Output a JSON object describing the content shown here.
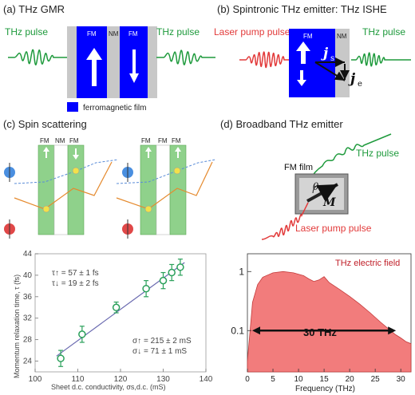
{
  "panels": {
    "a": {
      "caption": "(a) THz GMR",
      "left_pulse": "THz pulse",
      "right_pulse": "THz pulse",
      "fm1": "FM",
      "nm": "NM",
      "fm2": "FM",
      "legend": "ferromagnetic film"
    },
    "b": {
      "caption": "(b) Spintronic THz emitter: THz ISHE",
      "laser": "Laser pump pulse",
      "fm": "FM",
      "nm": "NM",
      "thz": "THz pulse",
      "js": "j",
      "js_sub": "s",
      "je": "j",
      "je_sub": "e"
    },
    "c": {
      "caption": "(c) Spin scattering",
      "left_labels": [
        "FM",
        "NM",
        "FM"
      ],
      "right_labels": [
        "FM",
        "FM",
        "FM"
      ]
    },
    "d": {
      "caption": "(d) Broadband THz emitter",
      "thz": "THz pulse",
      "film": "FM film",
      "theta": "θ",
      "m": "M",
      "laser": "Laser pump pulse"
    }
  },
  "chart_data": [
    {
      "type": "scatter",
      "ylabel": "Momentum relaxation time, τ (fs)",
      "xlabel": "Sheet d.c. conductivity, σs,d.c. (mS)",
      "xlim": [
        100,
        140
      ],
      "ylim": [
        22,
        44
      ],
      "xticks": [
        "100",
        "110",
        "120",
        "130",
        "140"
      ],
      "yticks": [
        "24",
        "28",
        "32",
        "36",
        "40",
        "44"
      ],
      "x": [
        106,
        111,
        119,
        126,
        130,
        132,
        134
      ],
      "y": [
        24.5,
        29,
        34,
        37.5,
        39,
        40.5,
        41.5
      ],
      "err": [
        1.5,
        1.5,
        1.0,
        1.5,
        1.5,
        1.5,
        1.5
      ],
      "annotations": {
        "tau_up": "τ↑ = 57 ± 1 fs",
        "tau_down": "τ↓ = 19 ± 2 fs",
        "sigma_up": "σ↑ = 215 ± 2 mS",
        "sigma_down": "σ↓ = 71 ± 1 mS"
      }
    },
    {
      "type": "area",
      "title": "THz electric field",
      "xlabel": "Frequency  (THz)",
      "xlim": [
        0,
        32
      ],
      "yscale": "log",
      "xticks": [
        "0",
        "5",
        "10",
        "15",
        "20",
        "25",
        "30"
      ],
      "yticks": [
        "1",
        "0.1"
      ],
      "x": [
        0,
        1,
        2,
        3,
        5,
        7,
        9,
        11,
        12,
        13,
        14,
        15,
        16,
        18,
        20,
        22,
        24,
        26,
        28,
        29,
        30,
        31,
        32
      ],
      "y": [
        0.03,
        0.3,
        0.6,
        0.8,
        0.95,
        1.0,
        0.95,
        0.85,
        0.75,
        0.68,
        0.72,
        0.82,
        0.65,
        0.5,
        0.38,
        0.28,
        0.2,
        0.14,
        0.1,
        0.085,
        0.075,
        0.065,
        0.06
      ],
      "bandwidth_label": "30 THz"
    }
  ]
}
